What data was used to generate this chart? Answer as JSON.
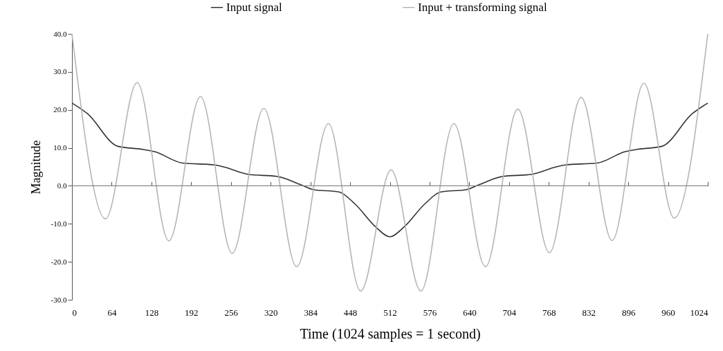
{
  "chart_data": {
    "type": "line",
    "xlabel": "Time  (1024 samples = 1 second)",
    "ylabel": "Magnitude",
    "xlim": [
      0,
      1024
    ],
    "xticks": [
      0,
      64,
      128,
      192,
      256,
      320,
      384,
      448,
      512,
      576,
      640,
      704,
      768,
      832,
      896,
      960,
      1024
    ],
    "ylim": [
      -30,
      40
    ],
    "yticks": [
      {
        "value": -30,
        "label": "-30.0"
      },
      {
        "value": -20,
        "label": "-20.0"
      },
      {
        "value": -10,
        "label": "-10.0"
      },
      {
        "value": 0,
        "label": "0.0"
      },
      {
        "value": 10,
        "label": "10.0"
      },
      {
        "value": 20,
        "label": "20.0"
      },
      {
        "value": 30,
        "label": "30.0"
      },
      {
        "value": 40,
        "label": "40.0"
      }
    ],
    "grid": false,
    "ref_lines": [
      {
        "axis": "y",
        "value": 0,
        "color": "#888888"
      }
    ],
    "legend": "top",
    "marker": "none",
    "line_style": "solid",
    "series": [
      {
        "name": "Input signal",
        "color": "#333333",
        "x": [
          0,
          25,
          74,
          114,
          133,
          178,
          230,
          244,
          285,
          330,
          367,
          389,
          430,
          456,
          489,
          512,
          535,
          568,
          594,
          635,
          657,
          694,
          739,
          780,
          794,
          846,
          891,
          910,
          950,
          999,
          1024
        ],
        "values": [
          21.8,
          19,
          10.4,
          9.6,
          9,
          6,
          5.5,
          5,
          3,
          2.5,
          0.4,
          -1,
          -1.6,
          -4.8,
          -10.8,
          -13.4,
          -10.8,
          -4.8,
          -1.6,
          -1,
          0.4,
          2.5,
          3,
          5,
          5.5,
          6,
          9,
          9.6,
          10.4,
          19,
          21.8
        ]
      },
      {
        "name": "Input + transforming signal",
        "color": "#b4b4b4",
        "x": [
          0,
          54,
          105,
          156,
          207,
          258,
          309,
          362,
          413,
          465,
          514,
          562,
          615,
          666,
          718,
          769,
          820,
          870,
          921,
          970,
          1024
        ],
        "values": [
          40,
          -8.7,
          27.2,
          -14.5,
          23.5,
          -17.8,
          20.4,
          -21.3,
          16.4,
          -27.7,
          4.2,
          -27.7,
          16.4,
          -21.3,
          20.2,
          -17.6,
          23.3,
          -14.4,
          27,
          -8.5,
          40
        ]
      }
    ]
  }
}
